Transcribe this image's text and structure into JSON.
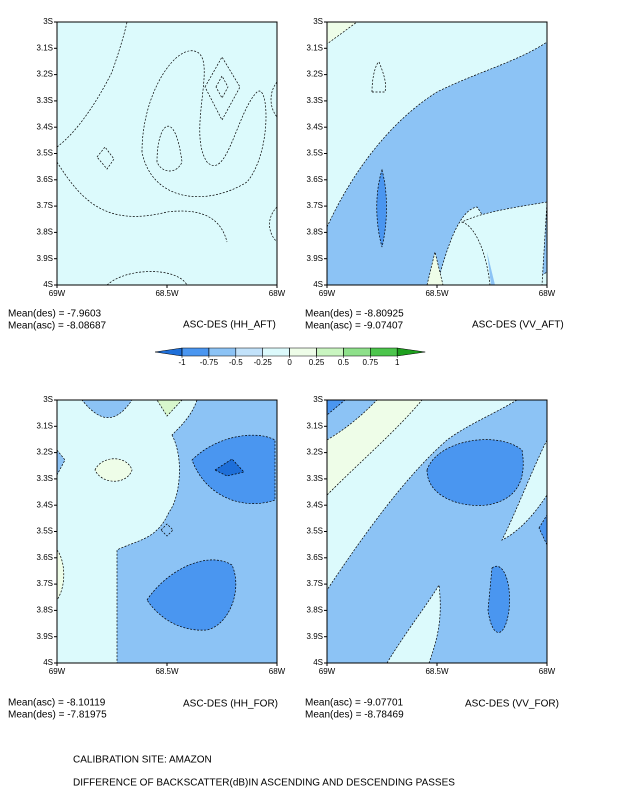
{
  "chart_data": [
    {
      "type": "contour",
      "title": "ASC-DES (HH_AFT)",
      "stats": [
        "Mean(des) = -7.9603",
        "Mean(asc) = -8.08687"
      ],
      "xlim": [
        -69,
        -68
      ],
      "ylim": [
        -4,
        -3
      ],
      "xticks": [
        {
          "value": -69,
          "label": "69W"
        },
        {
          "value": -68.5,
          "label": "68.5W"
        },
        {
          "value": -68,
          "label": "68W"
        }
      ],
      "yticks": [
        {
          "value": -3,
          "label": "3S"
        },
        {
          "value": -3.1,
          "label": "3.1S"
        },
        {
          "value": -3.2,
          "label": "3.2S"
        },
        {
          "value": -3.3,
          "label": "3.3S"
        },
        {
          "value": -3.4,
          "label": "3.4S"
        },
        {
          "value": -3.5,
          "label": "3.5S"
        },
        {
          "value": -3.6,
          "label": "3.6S"
        },
        {
          "value": -3.7,
          "label": "3.7S"
        },
        {
          "value": -3.8,
          "label": "3.8S"
        },
        {
          "value": -3.9,
          "label": "3.9S"
        },
        {
          "value": -4,
          "label": "4S"
        }
      ]
    },
    {
      "type": "contour",
      "title": "ASC-DES (VV_AFT)",
      "stats": [
        "Mean(des) = -8.80925",
        "Mean(asc) = -9.07407"
      ],
      "xlim": [
        -69,
        -68
      ],
      "ylim": [
        -4,
        -3
      ],
      "xticks": [
        {
          "value": -69,
          "label": "69W"
        },
        {
          "value": -68.5,
          "label": "68.5W"
        },
        {
          "value": -68,
          "label": "68W"
        }
      ],
      "yticks": [
        {
          "value": -3,
          "label": "3S"
        },
        {
          "value": -3.1,
          "label": "3.1S"
        },
        {
          "value": -3.2,
          "label": "3.2S"
        },
        {
          "value": -3.3,
          "label": "3.3S"
        },
        {
          "value": -3.4,
          "label": "3.4S"
        },
        {
          "value": -3.5,
          "label": "3.5S"
        },
        {
          "value": -3.6,
          "label": "3.6S"
        },
        {
          "value": -3.7,
          "label": "3.7S"
        },
        {
          "value": -3.8,
          "label": "3.8S"
        },
        {
          "value": -3.9,
          "label": "3.9S"
        },
        {
          "value": -4,
          "label": "4S"
        }
      ]
    },
    {
      "type": "contour",
      "title": "ASC-DES (HH_FOR)",
      "stats": [
        "Mean(asc) = -8.10119",
        "Mean(des) = -7.81975"
      ],
      "xlim": [
        -69,
        -68
      ],
      "ylim": [
        -4,
        -3
      ],
      "xticks": [
        {
          "value": -69,
          "label": "69W"
        },
        {
          "value": -68.5,
          "label": "68.5W"
        },
        {
          "value": -68,
          "label": "68W"
        }
      ],
      "yticks": [
        {
          "value": -3,
          "label": "3S"
        },
        {
          "value": -3.1,
          "label": "3.1S"
        },
        {
          "value": -3.2,
          "label": "3.2S"
        },
        {
          "value": -3.3,
          "label": "3.3S"
        },
        {
          "value": -3.4,
          "label": "3.4S"
        },
        {
          "value": -3.5,
          "label": "3.5S"
        },
        {
          "value": -3.6,
          "label": "3.6S"
        },
        {
          "value": -3.7,
          "label": "3.7S"
        },
        {
          "value": -3.8,
          "label": "3.8S"
        },
        {
          "value": -3.9,
          "label": "3.9S"
        },
        {
          "value": -4,
          "label": "4S"
        }
      ]
    },
    {
      "type": "contour",
      "title": "ASC-DES (VV_FOR)",
      "stats": [
        "Mean(asc) = -9.07701",
        "Mean(des) = -8.78469"
      ],
      "xlim": [
        -69,
        -68
      ],
      "ylim": [
        -4,
        -3
      ],
      "xticks": [
        {
          "value": -69,
          "label": "69W"
        },
        {
          "value": -68.5,
          "label": "68.5W"
        },
        {
          "value": -68,
          "label": "68W"
        }
      ],
      "yticks": [
        {
          "value": -3,
          "label": "3S"
        },
        {
          "value": -3.1,
          "label": "3.1S"
        },
        {
          "value": -3.2,
          "label": "3.2S"
        },
        {
          "value": -3.3,
          "label": "3.3S"
        },
        {
          "value": -3.4,
          "label": "3.4S"
        },
        {
          "value": -3.5,
          "label": "3.5S"
        },
        {
          "value": -3.6,
          "label": "3.6S"
        },
        {
          "value": -3.7,
          "label": "3.7S"
        },
        {
          "value": -3.8,
          "label": "3.8S"
        },
        {
          "value": -3.9,
          "label": "3.9S"
        },
        {
          "value": -4,
          "label": "4S"
        }
      ]
    }
  ],
  "colorbar": {
    "levels": [
      -1,
      -0.75,
      -0.5,
      -0.25,
      0,
      0.25,
      0.5,
      0.75,
      1
    ],
    "colors": [
      "#1e6fd9",
      "#4a96f0",
      "#8cc3f5",
      "#c2e2fa",
      "#dcfafc",
      "#eefde8",
      "#c9f5c0",
      "#8ee08a",
      "#4cc54c",
      "#1ea01e"
    ]
  },
  "footer": [
    "CALIBRATION SITE: AMAZON",
    "DIFFERENCE OF BACKSCATTER(dB)IN ASCENDING AND DESCENDING PASSES"
  ]
}
